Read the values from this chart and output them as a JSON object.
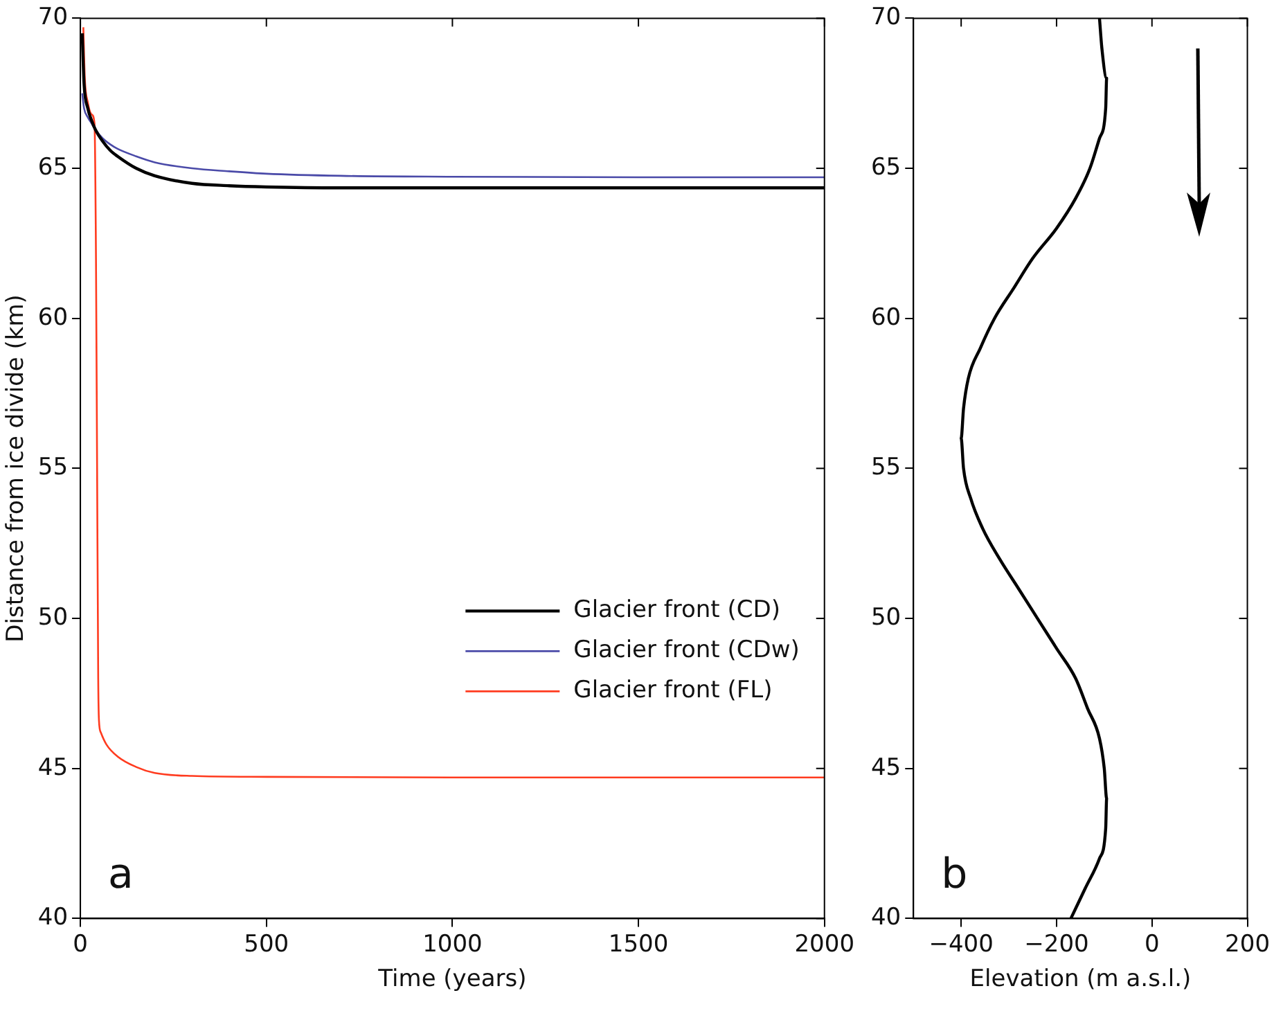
{
  "chart_data": [
    {
      "type": "line",
      "xlabel": "Time (years)",
      "ylabel": "Distance from ice divide (km)",
      "xlim": [
        0,
        2000
      ],
      "xticks": [
        0,
        500,
        1000,
        1500,
        2000
      ],
      "ylim": [
        40,
        70
      ],
      "yticks": [
        40,
        45,
        50,
        55,
        60,
        65,
        70
      ],
      "legend": "bottom right",
      "grid": false,
      "marker": "none",
      "annotations": [
        "a"
      ],
      "series": [
        {
          "name": "Glacier front (CD)",
          "color": "#000000",
          "x": [
            5,
            10,
            20,
            30,
            40,
            60,
            80,
            100,
            150,
            200,
            300,
            400,
            500,
            700,
            1000,
            1500,
            2000
          ],
          "values": [
            69.5,
            67.8,
            67.0,
            66.6,
            66.3,
            65.9,
            65.6,
            65.4,
            65.0,
            64.75,
            64.5,
            64.42,
            64.38,
            64.35,
            64.35,
            64.35,
            64.35
          ]
        },
        {
          "name": "Glacier front (CDw)",
          "color": "#4a4aa8",
          "x": [
            5,
            10,
            20,
            30,
            40,
            60,
            80,
            100,
            150,
            200,
            300,
            400,
            500,
            700,
            1000,
            1500,
            2000
          ],
          "values": [
            67.5,
            67.0,
            66.7,
            66.5,
            66.3,
            66.0,
            65.8,
            65.65,
            65.4,
            65.2,
            65.0,
            64.9,
            64.82,
            64.75,
            64.72,
            64.7,
            64.7
          ]
        },
        {
          "name": "Glacier front (FL)",
          "color": "#ff3b1f",
          "x": [
            8,
            12,
            20,
            30,
            38,
            42,
            45,
            48,
            50,
            55,
            70,
            100,
            150,
            200,
            300,
            500,
            1000,
            2000
          ],
          "values": [
            69.7,
            68.0,
            67.2,
            66.8,
            66.5,
            62.0,
            55.0,
            48.0,
            46.6,
            46.2,
            45.8,
            45.4,
            45.05,
            44.85,
            44.75,
            44.72,
            44.7,
            44.7
          ]
        }
      ]
    },
    {
      "type": "line",
      "xlabel": "Elevation (m a.s.l.)",
      "xlim": [
        -500,
        200
      ],
      "xticks": [
        -400,
        -200,
        0,
        200
      ],
      "ylim": [
        40,
        70
      ],
      "yticks": [
        40,
        45,
        50,
        55,
        60,
        65,
        70
      ],
      "legend": false,
      "grid": false,
      "marker": "none",
      "annotations": [
        "b"
      ],
      "series": [
        {
          "color": "#000000",
          "x": [
            -170,
            -140,
            -110,
            -97,
            -95,
            -100,
            -110,
            -135,
            -160,
            -200,
            -240,
            -280,
            -320,
            -355,
            -380,
            -395,
            -400,
            -395,
            -385,
            -360,
            -330,
            -290,
            -250,
            -200,
            -160,
            -130,
            -110,
            -97,
            -95,
            -105,
            -110
          ],
          "values": [
            40,
            41,
            42,
            43,
            44,
            45,
            46,
            47,
            48,
            49,
            50,
            51,
            52,
            53,
            54,
            55,
            56,
            57,
            58,
            59,
            60,
            61,
            62,
            63,
            64,
            65,
            66,
            67,
            68,
            69,
            70
          ]
        }
      ]
    }
  ]
}
